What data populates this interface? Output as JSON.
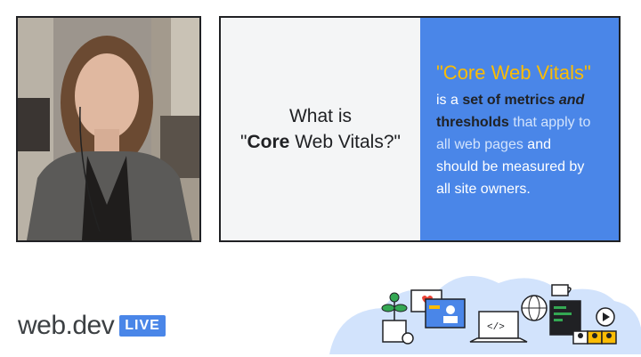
{
  "slide": {
    "question_line1": "What is",
    "question_q_open": "\"",
    "question_bold": "Core",
    "question_rest": " Web Vitals?\"",
    "answer_title": "\"Core Web Vitals\"",
    "answer_is_a": "is a ",
    "answer_set_of_metrics": "set of metrics ",
    "answer_and": "and",
    "answer_thresholds": "thresholds",
    "answer_that_apply": " that apply to",
    "answer_all_web_pages": "all web pages",
    "answer_and2": " and",
    "answer_should": "should be measured by",
    "answer_owners": "all site owners."
  },
  "logo": {
    "text": "web.dev",
    "badge": "LIVE"
  },
  "colors": {
    "slide_blue": "#4a86e8",
    "title_yellow": "#fbbc04",
    "logo_gray": "#3c4043"
  }
}
